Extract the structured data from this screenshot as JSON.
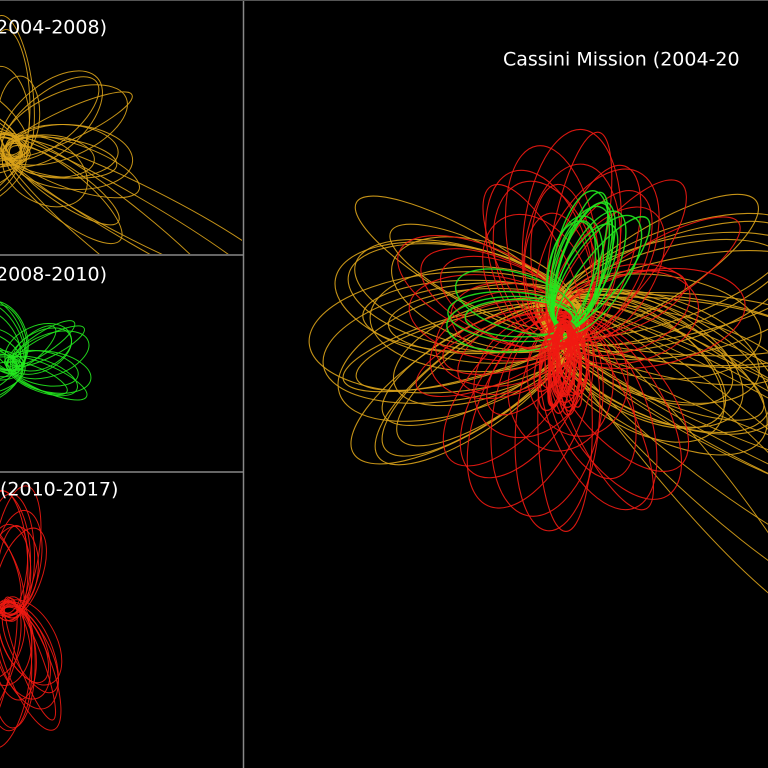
{
  "panels": [
    {
      "label": "2004-2008)"
    },
    {
      "label": "2008-2010)"
    },
    {
      "label": "(2010-2017)"
    }
  ],
  "main": {
    "title": "Cassini Mission (2004-20"
  }
}
